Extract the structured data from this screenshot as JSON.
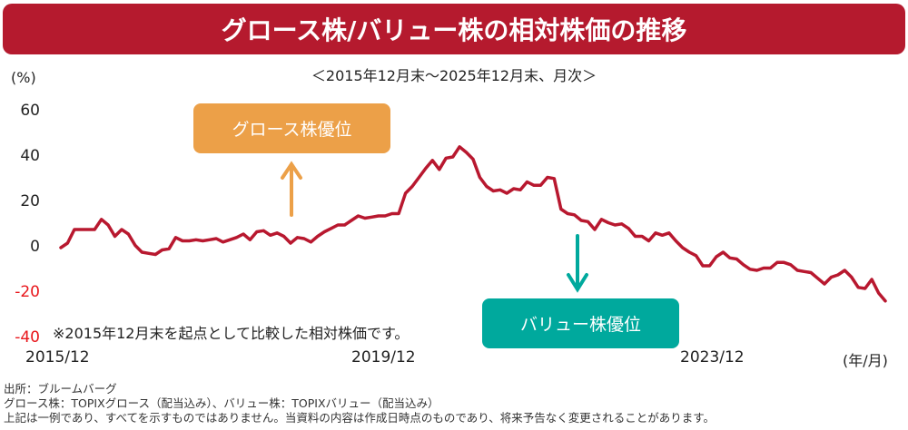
{
  "header": {
    "title": "グロース株/バリュー株の相対株価の推移",
    "subtitle": "＜2015年12月末～2025年12月末、月次＞"
  },
  "axes": {
    "y_unit": "(%)",
    "y_ticks": [
      "60",
      "40",
      "20",
      "0",
      "-20",
      "-40"
    ],
    "x_ticks": [
      "2015/12",
      "2019/12",
      "2023/12"
    ],
    "x_unit": "(年/月)"
  },
  "callouts": {
    "growth": "グロース株優位",
    "value": "バリュー株優位"
  },
  "note": "※2015年12月末を起点として比較した相対株価です。",
  "footer": {
    "source": "出所：ブルームバーグ",
    "definition": "グロース株：TOPIXグロース（配当込み）、バリュー株：TOPIXバリュー（配当込み）",
    "disclaimer": "上記は一例であり、すべてを示すものではありません。当資料の内容は作成日時点のものであり、将来予告なく変更されることがあります。"
  },
  "colors": {
    "banner": "#b51a2e",
    "line": "#b8182f",
    "growth_box": "#eca048",
    "value_box": "#00a99d",
    "negative_tick": "#e8161b"
  },
  "chart_data": {
    "type": "line",
    "title": "グロース株/バリュー株の相対株価の推移",
    "subtitle": "＜2015年12月末～2025年12月末、月次＞",
    "xlabel": "(年/月)",
    "ylabel": "(%)",
    "ylim": [
      -40,
      60
    ],
    "yticks": [
      60,
      40,
      20,
      0,
      -20,
      -40
    ],
    "xticks": [
      "2015/12",
      "2019/12",
      "2023/12"
    ],
    "x_start": "2015/12",
    "x_end": "2025/12",
    "frequency": "monthly",
    "grid": false,
    "legend": null,
    "annotations": [
      {
        "text": "グロース株優位",
        "arrow": "up",
        "color": "#eca048"
      },
      {
        "text": "バリュー株優位",
        "arrow": "down",
        "color": "#00a99d"
      },
      {
        "text": "※2015年12月末を起点として比較した相対株価です。"
      }
    ],
    "series": [
      {
        "name": "相対株価",
        "color": "#b8182f",
        "values": [
          0,
          2,
          8,
          8,
          8,
          8,
          12.5,
          10,
          5,
          8,
          6,
          1,
          -2,
          -2.5,
          -3,
          -1,
          -0.5,
          4.5,
          3,
          3,
          3.5,
          3,
          3.5,
          4,
          2.5,
          3.5,
          4.5,
          6,
          3.5,
          7,
          7.5,
          5.5,
          6.5,
          5,
          2,
          4.5,
          4,
          2.5,
          5,
          7,
          8.5,
          10,
          10,
          12,
          14,
          13,
          13.5,
          14,
          14,
          15,
          15,
          24,
          27,
          31,
          35,
          38.5,
          34.5,
          39.5,
          40,
          44.5,
          42,
          39,
          31,
          27,
          25,
          25.5,
          24,
          26,
          25.5,
          29,
          27.5,
          27.5,
          31,
          30.5,
          17,
          15,
          14.5,
          12,
          11.5,
          8,
          12.5,
          11,
          10,
          10.5,
          8.5,
          5,
          5,
          3,
          6.5,
          5.5,
          6.5,
          3,
          0,
          -2,
          -3.5,
          -8,
          -8,
          -4,
          -2,
          -4.5,
          -5,
          -7.5,
          -9.5,
          -10,
          -9,
          -9,
          -6.5,
          -6.5,
          -7.5,
          -10,
          -10.5,
          -11,
          -13.5,
          -16,
          -13,
          -12,
          -10,
          -13,
          -17.5,
          -18,
          -14,
          -20,
          -23.5
        ]
      }
    ]
  }
}
